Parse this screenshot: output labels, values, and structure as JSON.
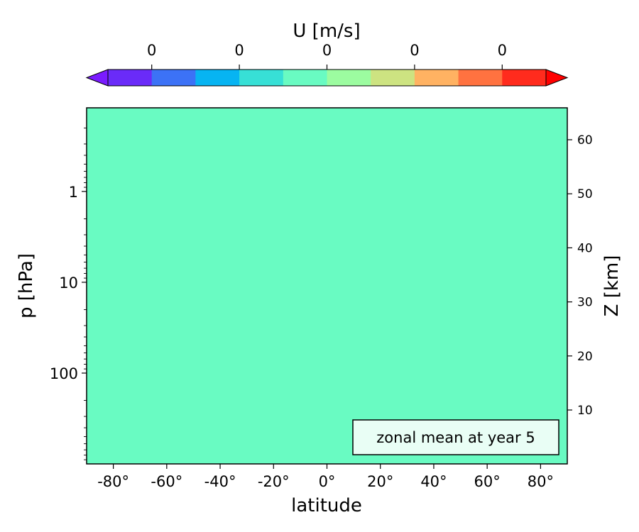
{
  "chart_data": {
    "type": "heatmap",
    "title": "",
    "annotation": "zonal mean at year 5",
    "field": {
      "uniform": true,
      "value": 0,
      "color": "#69fbc2"
    },
    "colorbar": {
      "label": "U [m/s]",
      "extend": "both",
      "colors": [
        "#6a2bf8",
        "#3c72f6",
        "#07b4f2",
        "#37e0d6",
        "#69fbc2",
        "#9cfca0",
        "#cde381",
        "#ffb262",
        "#ff7240",
        "#ff2b1d"
      ],
      "tick_labels": [
        "0",
        "0",
        "0",
        "0",
        "0"
      ],
      "min_arrow_color": "#7a1bff",
      "max_arrow_color": "#ff0000"
    },
    "x_axis": {
      "label": "latitude",
      "range": [
        -90,
        90
      ],
      "ticks": [
        -80,
        -60,
        -40,
        -20,
        0,
        20,
        40,
        60,
        80
      ],
      "tick_labels": [
        "-80°",
        "-60°",
        "-40°",
        "-20°",
        "0°",
        "20°",
        "40°",
        "60°",
        "80°"
      ]
    },
    "y_axis_left": {
      "label": "p  [hPa]",
      "scale": "log",
      "inverted": true,
      "range": [
        0.12,
        1000
      ],
      "ticks": [
        1,
        10,
        100
      ],
      "tick_labels": [
        "1",
        "10",
        "100"
      ]
    },
    "y_axis_right": {
      "label": "Z [km]",
      "ticks": [
        10,
        20,
        30,
        40,
        50,
        60
      ],
      "tick_labels": [
        "10",
        "20",
        "30",
        "40",
        "50",
        "60"
      ]
    },
    "grid": false
  }
}
